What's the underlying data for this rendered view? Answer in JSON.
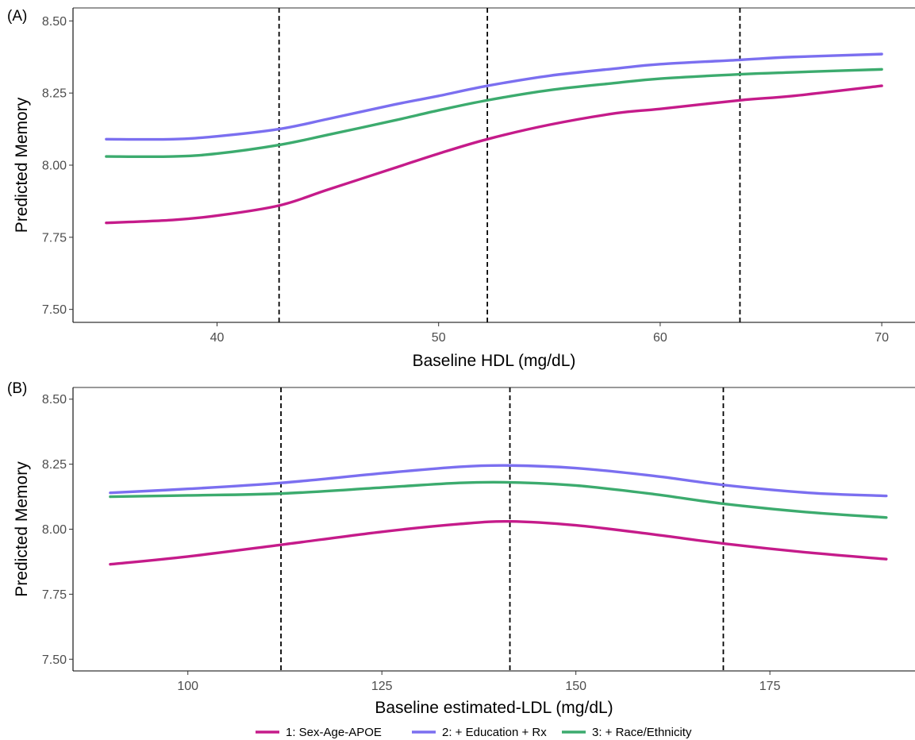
{
  "legend": {
    "position": "bottom",
    "items": [
      {
        "label": "1: Sex-Age-APOE",
        "color": "#C51B8A"
      },
      {
        "label": "2: + Education + Rx",
        "color": "#7B6FF0"
      },
      {
        "label": "3: + Race/Ethnicity",
        "color": "#3CAB6E"
      }
    ]
  },
  "chart_data": [
    {
      "type": "line",
      "panel_label": "(A)",
      "xlabel": "Baseline HDL (mg/dL)",
      "ylabel": "Predicted Memory",
      "xlim": [
        33.5,
        71.5
      ],
      "ylim": [
        7.455,
        8.545
      ],
      "xticks": [
        40,
        50,
        60,
        70
      ],
      "xtick_labels": [
        "40",
        "50",
        "60",
        "70"
      ],
      "yticks": [
        7.5,
        7.75,
        8.0,
        8.25,
        8.5
      ],
      "ytick_labels": [
        "7.50",
        "7.75",
        "8.00",
        "8.25",
        "8.50"
      ],
      "grid": false,
      "vlines": [
        42.8,
        52.2,
        63.6
      ],
      "x": [
        35,
        38,
        40,
        42.8,
        45,
        48,
        50,
        52.2,
        55,
        58,
        60,
        63.6,
        66,
        70
      ],
      "series": [
        {
          "name": "1: Sex-Age-APOE",
          "color": "#C51B8A",
          "values": [
            7.8,
            7.81,
            7.825,
            7.86,
            7.915,
            7.99,
            8.04,
            8.09,
            8.14,
            8.18,
            8.195,
            8.225,
            8.24,
            8.275
          ]
        },
        {
          "name": "2: + Education + Rx",
          "color": "#7B6FF0",
          "values": [
            8.09,
            8.09,
            8.1,
            8.125,
            8.16,
            8.21,
            8.24,
            8.275,
            8.31,
            8.335,
            8.35,
            8.365,
            8.375,
            8.385
          ]
        },
        {
          "name": "3: + Race/Ethnicity",
          "color": "#3CAB6E",
          "values": [
            8.03,
            8.03,
            8.04,
            8.07,
            8.105,
            8.155,
            8.19,
            8.225,
            8.26,
            8.285,
            8.3,
            8.315,
            8.322,
            8.332
          ]
        }
      ]
    },
    {
      "type": "line",
      "panel_label": "(B)",
      "xlabel": "Baseline estimated-LDL (mg/dL)",
      "ylabel": "Predicted Memory",
      "xlim": [
        85.2,
        193.7
      ],
      "ylim": [
        7.455,
        8.545
      ],
      "xticks": [
        100,
        125,
        150,
        175
      ],
      "xtick_labels": [
        "100",
        "125",
        "150",
        "175"
      ],
      "yticks": [
        7.5,
        7.75,
        8.0,
        8.25,
        8.5
      ],
      "ytick_labels": [
        "7.50",
        "7.75",
        "8.00",
        "8.25",
        "8.50"
      ],
      "grid": false,
      "vlines": [
        112,
        141.5,
        169
      ],
      "x": [
        90,
        100,
        112,
        125,
        135,
        141.5,
        150,
        160,
        169,
        180,
        190
      ],
      "series": [
        {
          "name": "1: Sex-Age-APOE",
          "color": "#C51B8A",
          "values": [
            7.865,
            7.895,
            7.94,
            7.99,
            8.02,
            8.03,
            8.015,
            7.98,
            7.945,
            7.91,
            7.885
          ]
        },
        {
          "name": "2: + Education + Rx",
          "color": "#7B6FF0",
          "values": [
            8.14,
            8.155,
            8.178,
            8.215,
            8.24,
            8.245,
            8.235,
            8.205,
            8.17,
            8.14,
            8.128
          ]
        },
        {
          "name": "3: + Race/Ethnicity",
          "color": "#3CAB6E",
          "values": [
            8.125,
            8.13,
            8.137,
            8.16,
            8.178,
            8.18,
            8.168,
            8.135,
            8.098,
            8.065,
            8.045
          ]
        }
      ]
    }
  ]
}
